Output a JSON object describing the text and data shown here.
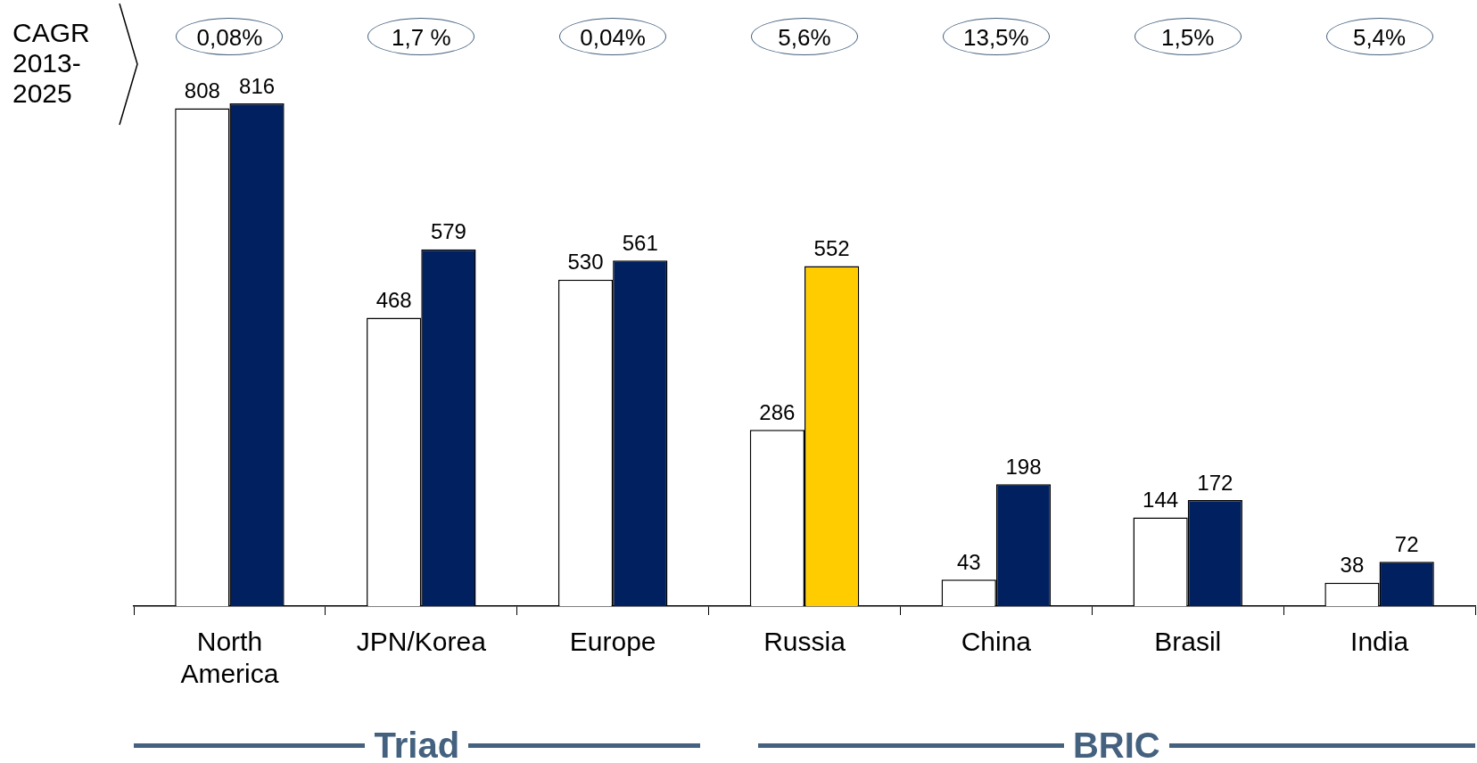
{
  "chart_data": {
    "type": "bar",
    "categories": [
      "North America",
      "JPN/Korea",
      "Europe",
      "Russia",
      "China",
      "Brasil",
      "India"
    ],
    "series": [
      {
        "color": "#ffffff",
        "values": [
          808,
          468,
          530,
          286,
          43,
          144,
          38
        ]
      },
      {
        "colors": [
          "#002060",
          "#002060",
          "#002060",
          "#ffcc00",
          "#002060",
          "#002060",
          "#002060"
        ],
        "values": [
          816,
          579,
          561,
          552,
          198,
          172,
          72
        ]
      }
    ],
    "data_labels": true,
    "grid": false,
    "legend": false,
    "tick_labels": "x",
    "annotations": [
      "CAGR 2013-2025",
      "0,08%",
      "1,7 %",
      "0,04%",
      "5,6%",
      "13,5%",
      "1,5%",
      "5,4%",
      "Triad",
      "BRIC"
    ]
  }
}
